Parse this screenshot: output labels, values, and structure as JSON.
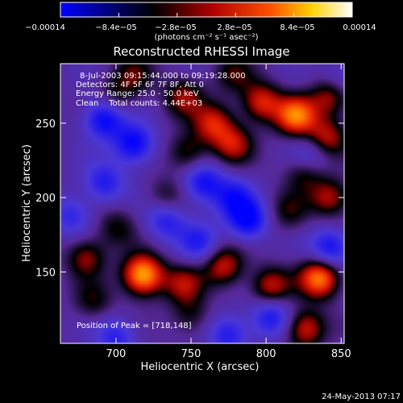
{
  "chart_data": {
    "type": "heatmap",
    "title": "Reconstructed RHESSI Image",
    "xlabel": "Heliocentric X (arcsec)",
    "ylabel": "Heliocentric Y (arcsec)",
    "xlim": [
      663,
      852
    ],
    "ylim": [
      102,
      290
    ],
    "x_ticks": [
      700,
      750,
      800,
      850
    ],
    "y_ticks": [
      150,
      200,
      250
    ],
    "colorbar": {
      "range": [
        -0.00014,
        0.00014
      ],
      "tick_labels": [
        "−0.00014",
        "−8.4e−05",
        "−2.8e−05",
        "2.8e−05",
        "8.4e−05",
        "0.00014"
      ],
      "tick_values": [
        -0.00014,
        -8.4e-05,
        -2.8e-05,
        2.8e-05,
        8.4e-05,
        0.00014
      ],
      "units_label": "(photons cm⁻² s⁻¹ asec⁻²)",
      "colors": [
        "#0000ff",
        "#000000",
        "#cc0000",
        "#ff6600",
        "#ffff00",
        "#ffffff"
      ]
    },
    "annotations": [
      "8-Jul-2003 09:15:44.000 to 09:19:28.000",
      "Detectors: 4F 5F 6F 7F 8F, Att 0",
      "Energy Range: 25.0 - 50.0 keV",
      "Clean    Total counts: 4.44E+03"
    ],
    "peak_label": "Position of Peak = [718,148]",
    "peak": [
      718,
      148
    ],
    "sources": [
      {
        "x": 718,
        "y": 148,
        "amp": 1.0
      },
      {
        "x": 836,
        "y": 146,
        "amp": 0.85
      },
      {
        "x": 826,
        "y": 112,
        "amp": 0.6
      },
      {
        "x": 803,
        "y": 140,
        "amp": 0.55
      },
      {
        "x": 772,
        "y": 154,
        "amp": 0.55
      },
      {
        "x": 745,
        "y": 142,
        "amp": 0.45
      },
      {
        "x": 680,
        "y": 160,
        "amp": 0.45
      },
      {
        "x": 685,
        "y": 130,
        "amp": 0.3
      },
      {
        "x": 750,
        "y": 120,
        "amp": 0.3
      },
      {
        "x": 700,
        "y": 180,
        "amp": 0.3
      },
      {
        "x": 820,
        "y": 255,
        "amp": 0.8
      },
      {
        "x": 797,
        "y": 264,
        "amp": 0.6
      },
      {
        "x": 840,
        "y": 240,
        "amp": 0.55
      },
      {
        "x": 843,
        "y": 268,
        "amp": 0.5
      },
      {
        "x": 765,
        "y": 250,
        "amp": 0.55
      },
      {
        "x": 778,
        "y": 236,
        "amp": 0.5
      },
      {
        "x": 745,
        "y": 268,
        "amp": 0.45
      },
      {
        "x": 748,
        "y": 230,
        "amp": 0.4
      },
      {
        "x": 843,
        "y": 200,
        "amp": 0.5
      },
      {
        "x": 826,
        "y": 218,
        "amp": 0.4
      },
      {
        "x": 815,
        "y": 190,
        "amp": 0.3
      },
      {
        "x": 733,
        "y": 200,
        "amp": 0.3
      },
      {
        "x": 700,
        "y": 268,
        "amp": 0.3
      },
      {
        "x": 712,
        "y": 283,
        "amp": 0.3
      },
      {
        "x": 778,
        "y": 283,
        "amp": 0.3
      },
      {
        "x": 692,
        "y": 253,
        "amp": -0.7
      },
      {
        "x": 712,
        "y": 236,
        "amp": -0.7
      },
      {
        "x": 758,
        "y": 210,
        "amp": -0.6
      },
      {
        "x": 788,
        "y": 185,
        "amp": -0.7
      },
      {
        "x": 778,
        "y": 200,
        "amp": -0.5
      },
      {
        "x": 733,
        "y": 185,
        "amp": -0.5
      },
      {
        "x": 692,
        "y": 210,
        "amp": -0.5
      },
      {
        "x": 843,
        "y": 166,
        "amp": -0.6
      },
      {
        "x": 803,
        "y": 120,
        "amp": -0.55
      },
      {
        "x": 775,
        "y": 108,
        "amp": -0.5
      },
      {
        "x": 700,
        "y": 106,
        "amp": -0.45
      },
      {
        "x": 830,
        "y": 228,
        "amp": -0.4
      },
      {
        "x": 755,
        "y": 170,
        "amp": -0.45
      },
      {
        "x": 670,
        "y": 188,
        "amp": -0.4
      },
      {
        "x": 850,
        "y": 280,
        "amp": -0.3
      }
    ]
  },
  "footer": {
    "timestamp": "24-May-2013 07:17"
  }
}
